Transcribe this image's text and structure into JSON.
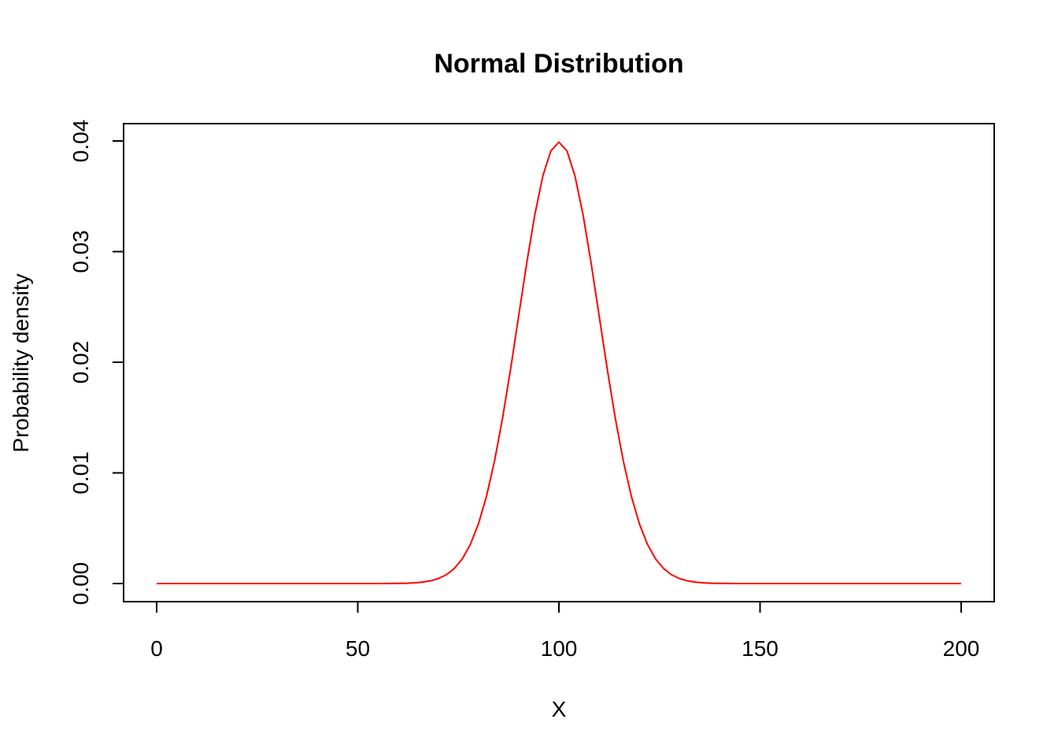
{
  "chart_data": {
    "type": "line",
    "title": "Normal Distribution",
    "xlabel": "X",
    "ylabel": "Probability density",
    "xlim": [
      0,
      200
    ],
    "ylim": [
      0,
      0.04
    ],
    "x_ticks": [
      0,
      50,
      100,
      150,
      200
    ],
    "x_tick_labels": [
      "0",
      "50",
      "100",
      "150",
      "200"
    ],
    "y_ticks": [
      0,
      0.01,
      0.02,
      0.03,
      0.04
    ],
    "y_tick_labels": [
      "0.00",
      "0.01",
      "0.02",
      "0.03",
      "0.04"
    ],
    "grid": false,
    "series": [
      {
        "color": "#ff0000",
        "distribution": {
          "mean": 100,
          "sd": 10
        },
        "x_start": 0,
        "x_end": 200,
        "x_step": 2
      }
    ]
  }
}
